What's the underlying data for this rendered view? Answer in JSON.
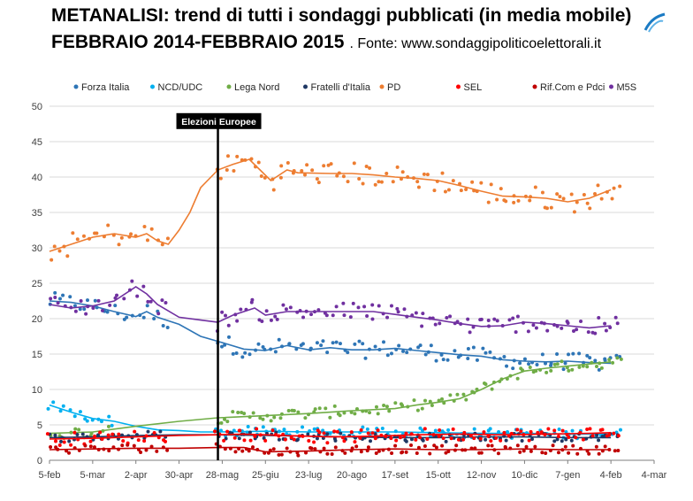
{
  "title_line1": "METANALISI: trend di tutti i sondaggi pubblicati (in media mobile)",
  "title_line2_bold": "FEBBRAIO 2014-FEBBRAIO 2015",
  "title_line2_source": ". Fonte: www.sondaggipoliticoelettorali.it",
  "chart_data": {
    "type": "scatter",
    "title": "METANALISI: trend di tutti i sondaggi pubblicati (in media mobile)",
    "subtitle": "FEBBRAIO 2014-FEBBRAIO 2015. Fonte: www.sondaggipoliticoelettorali.it",
    "xlabel": "",
    "ylabel": "",
    "ylim": [
      0,
      50
    ],
    "yticks": [
      0,
      5,
      10,
      15,
      20,
      25,
      30,
      35,
      40,
      45,
      50
    ],
    "x_ticks": [
      "5-feb",
      "5-mar",
      "2-apr",
      "30-apr",
      "28-mag",
      "25-giu",
      "23-lug",
      "20-ago",
      "17-set",
      "15-ott",
      "12-nov",
      "10-dic",
      "7-gen",
      "4-feb",
      "4-mar"
    ],
    "x_axis_unit": "weeks from 5-feb-2014",
    "grid": "horizontal",
    "legend_position": "top",
    "annotation": {
      "label": "Elezioni Europee",
      "date": "25-mag-2014",
      "x_week": 15.6
    },
    "series": [
      {
        "name": "Forza Italia",
        "color": "#2E75B6",
        "trend": [
          [
            0,
            22.5
          ],
          [
            2,
            22.3
          ],
          [
            4,
            21.8
          ],
          [
            6,
            21
          ],
          [
            8,
            20.3
          ],
          [
            9,
            21.0
          ],
          [
            10,
            20.2
          ],
          [
            12,
            19.2
          ],
          [
            14,
            17.5
          ],
          [
            15.6,
            16.8
          ],
          [
            18,
            15.7
          ],
          [
            20,
            15.5
          ],
          [
            22,
            16.2
          ],
          [
            24,
            15.6
          ],
          [
            26,
            15.9
          ],
          [
            28,
            15.6
          ],
          [
            30,
            15.6
          ],
          [
            32,
            15.8
          ],
          [
            34,
            15.5
          ],
          [
            36,
            15.2
          ],
          [
            38,
            14.9
          ],
          [
            40,
            14.7
          ],
          [
            42,
            14.2
          ],
          [
            44,
            14.0
          ],
          [
            46,
            13.9
          ],
          [
            48,
            14.0
          ],
          [
            50,
            13.8
          ],
          [
            52,
            13.7
          ]
        ],
        "spread": 1.2,
        "ranges": [
          [
            0,
            11
          ],
          [
            15.5,
            53
          ]
        ]
      },
      {
        "name": "NCD/UDC",
        "color": "#00B0F0",
        "trend": [
          [
            0,
            7.8
          ],
          [
            2,
            6.8
          ],
          [
            4,
            5.9
          ],
          [
            6,
            5.5
          ],
          [
            8,
            4.8
          ],
          [
            10,
            4.3
          ],
          [
            12,
            4.2
          ],
          [
            14,
            4.0
          ],
          [
            15.6,
            4.0
          ],
          [
            20,
            4.1
          ],
          [
            24,
            4.0
          ],
          [
            28,
            4.0
          ],
          [
            32,
            4.0
          ],
          [
            36,
            3.9
          ],
          [
            40,
            3.8
          ],
          [
            44,
            3.8
          ],
          [
            48,
            3.7
          ],
          [
            52,
            3.7
          ]
        ],
        "spread": 0.7,
        "ranges": [
          [
            0,
            6
          ],
          [
            15.5,
            53
          ]
        ]
      },
      {
        "name": "Lega Nord",
        "color": "#70AD47",
        "trend": [
          [
            0,
            3.8
          ],
          [
            4,
            4.0
          ],
          [
            8,
            4.8
          ],
          [
            12,
            5.5
          ],
          [
            15.6,
            6.0
          ],
          [
            20,
            6.3
          ],
          [
            24,
            6.6
          ],
          [
            28,
            7.0
          ],
          [
            32,
            7.3
          ],
          [
            34,
            7.8
          ],
          [
            36,
            8.2
          ],
          [
            38,
            8.7
          ],
          [
            40,
            10.0
          ],
          [
            42,
            11.5
          ],
          [
            44,
            12.6
          ],
          [
            46,
            13.0
          ],
          [
            48,
            13.3
          ],
          [
            50,
            13.6
          ],
          [
            52,
            13.9
          ]
        ],
        "spread": 0.8,
        "ranges": [
          [
            0,
            6
          ],
          [
            15.5,
            53
          ]
        ]
      },
      {
        "name": "Fratelli d'Italia",
        "color": "#1F3864",
        "trend": [
          [
            0,
            3.2
          ],
          [
            4,
            3.3
          ],
          [
            8,
            3.5
          ],
          [
            12,
            3.6
          ],
          [
            15.6,
            3.6
          ],
          [
            20,
            3.5
          ],
          [
            24,
            3.4
          ],
          [
            28,
            3.3
          ],
          [
            32,
            3.2
          ],
          [
            36,
            3.2
          ],
          [
            40,
            3.3
          ],
          [
            44,
            3.3
          ],
          [
            48,
            3.2
          ],
          [
            52,
            3.2
          ]
        ],
        "spread": 0.6,
        "ranges": [
          [
            0,
            11
          ],
          [
            15.5,
            53
          ]
        ]
      },
      {
        "name": "PD",
        "color": "#ED7D31",
        "trend": [
          [
            0,
            29.5
          ],
          [
            2,
            30.5
          ],
          [
            4,
            31.5
          ],
          [
            6,
            32.0
          ],
          [
            8,
            31.5
          ],
          [
            9,
            32.0
          ],
          [
            10,
            31.0
          ],
          [
            11,
            30.5
          ],
          [
            12,
            32.5
          ],
          [
            13,
            35.0
          ],
          [
            14,
            38.5
          ],
          [
            15.6,
            41.0
          ],
          [
            17,
            41.8
          ],
          [
            18.5,
            42.5
          ],
          [
            19.5,
            41.0
          ],
          [
            20.5,
            39.5
          ],
          [
            22,
            41.0
          ],
          [
            23,
            40.6
          ],
          [
            26,
            40.5
          ],
          [
            28,
            40.5
          ],
          [
            30,
            40.3
          ],
          [
            32,
            40.0
          ],
          [
            34,
            39.8
          ],
          [
            36,
            39.5
          ],
          [
            38,
            38.8
          ],
          [
            40,
            38.0
          ],
          [
            42,
            37.3
          ],
          [
            44,
            37.2
          ],
          [
            46,
            37.0
          ],
          [
            48,
            36.5
          ],
          [
            50,
            37.0
          ],
          [
            52,
            38.2
          ]
        ],
        "spread": 1.6,
        "ranges": [
          [
            0,
            11
          ],
          [
            15.5,
            53
          ]
        ]
      },
      {
        "name": "SEL",
        "color": "#FF0000",
        "trend": [
          [
            0,
            3.0
          ],
          [
            4,
            3.1
          ],
          [
            8,
            3.3
          ],
          [
            12,
            3.5
          ],
          [
            15.6,
            3.6
          ],
          [
            18,
            3.7
          ],
          [
            22,
            3.5
          ],
          [
            26,
            3.3
          ],
          [
            30,
            3.4
          ],
          [
            34,
            3.6
          ],
          [
            38,
            3.7
          ],
          [
            42,
            3.6
          ],
          [
            46,
            3.7
          ],
          [
            50,
            3.8
          ],
          [
            52,
            3.9
          ]
        ],
        "spread": 0.9,
        "ranges": [
          [
            0,
            11
          ],
          [
            15.5,
            53
          ]
        ]
      },
      {
        "name": "Rif.Com e Pdci",
        "color": "#C00000",
        "trend": [
          [
            0,
            1.5
          ],
          [
            4,
            1.6
          ],
          [
            8,
            1.7
          ],
          [
            12,
            1.7
          ],
          [
            15.6,
            1.8
          ],
          [
            18,
            1.8
          ],
          [
            20,
            1.2
          ],
          [
            24,
            1.3
          ],
          [
            28,
            1.5
          ],
          [
            32,
            1.6
          ],
          [
            36,
            1.5
          ],
          [
            40,
            1.5
          ],
          [
            44,
            1.6
          ],
          [
            48,
            1.5
          ],
          [
            52,
            1.5
          ]
        ],
        "spread": 0.6,
        "ranges": [
          [
            0,
            11
          ],
          [
            15.5,
            53
          ]
        ]
      },
      {
        "name": "M5S",
        "color": "#7030A0",
        "trend": [
          [
            0,
            22.0
          ],
          [
            2,
            21.5
          ],
          [
            4,
            21.8
          ],
          [
            6,
            22.5
          ],
          [
            8,
            24.5
          ],
          [
            9,
            23.5
          ],
          [
            10,
            22.0
          ],
          [
            12,
            20.2
          ],
          [
            14,
            19.8
          ],
          [
            15.6,
            19.5
          ],
          [
            17,
            20.5
          ],
          [
            19,
            21.5
          ],
          [
            20,
            20.5
          ],
          [
            22,
            21.0
          ],
          [
            24,
            21.0
          ],
          [
            26,
            21.0
          ],
          [
            28,
            21.0
          ],
          [
            30,
            21.0
          ],
          [
            32,
            20.6
          ],
          [
            34,
            20.2
          ],
          [
            36,
            19.8
          ],
          [
            38,
            19.3
          ],
          [
            40,
            18.9
          ],
          [
            42,
            19.0
          ],
          [
            44,
            19.5
          ],
          [
            46,
            19.3
          ],
          [
            48,
            19.0
          ],
          [
            50,
            18.7
          ],
          [
            52,
            19.0
          ]
        ],
        "spread": 1.3,
        "ranges": [
          [
            0,
            11
          ],
          [
            15.5,
            53
          ]
        ]
      }
    ]
  }
}
